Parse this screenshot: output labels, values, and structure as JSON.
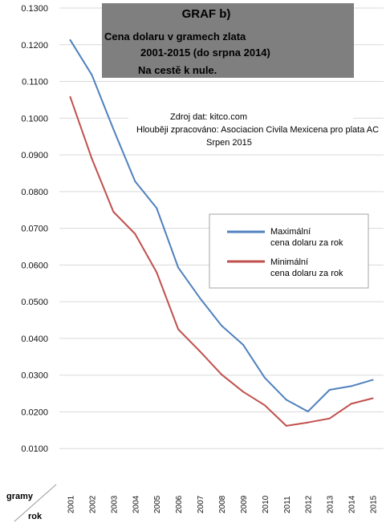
{
  "chart_data": {
    "type": "line",
    "title_lines": [
      "GRAF b)",
      "Cena dolaru v gramech zlata",
      "2001-2015 (do srpna 2014)",
      "Na cestě k nule."
    ],
    "source_lines": [
      "Zdroj dat: kitco.com",
      "Hlouběji zpracováno: Asociacion Civila Mexicena pro plata AC",
      "Srpen 2015"
    ],
    "ylabel": "gramy",
    "xlabel": "rok",
    "ylim": [
      0,
      0.13
    ],
    "y_ticks": [
      "0.0100",
      "0.0200",
      "0.0300",
      "0.0400",
      "0.0500",
      "0.0600",
      "0.0700",
      "0.0800",
      "0.0900",
      "0.1000",
      "0.1100",
      "0.1200",
      "0.1300"
    ],
    "categories": [
      "2001",
      "2002",
      "2003",
      "2004",
      "2005",
      "2006",
      "2007",
      "2008",
      "2009",
      "2010",
      "2011",
      "2012",
      "2013",
      "2014",
      "2015"
    ],
    "grid": true,
    "legend_position": "right",
    "series": [
      {
        "name": "Maximální cena dolaru za rok",
        "legend_lines": [
          "Maximální",
          "cena dolaru za rok"
        ],
        "color": "#4f81bd",
        "values": [
          0.1213,
          0.1118,
          0.097,
          0.0828,
          0.0755,
          0.0593,
          0.051,
          0.0435,
          0.0383,
          0.0293,
          0.0233,
          0.0201,
          0.026,
          0.027,
          0.0287
        ]
      },
      {
        "name": "Minimální cena dolaru za rok",
        "legend_lines": [
          "Minimální",
          "cena dolaru za rok"
        ],
        "color": "#c0504d",
        "values": [
          0.1058,
          0.089,
          0.0745,
          0.0685,
          0.058,
          0.0425,
          0.0365,
          0.0302,
          0.0255,
          0.0218,
          0.0162,
          0.0171,
          0.0182,
          0.0222,
          0.0237
        ]
      }
    ]
  }
}
